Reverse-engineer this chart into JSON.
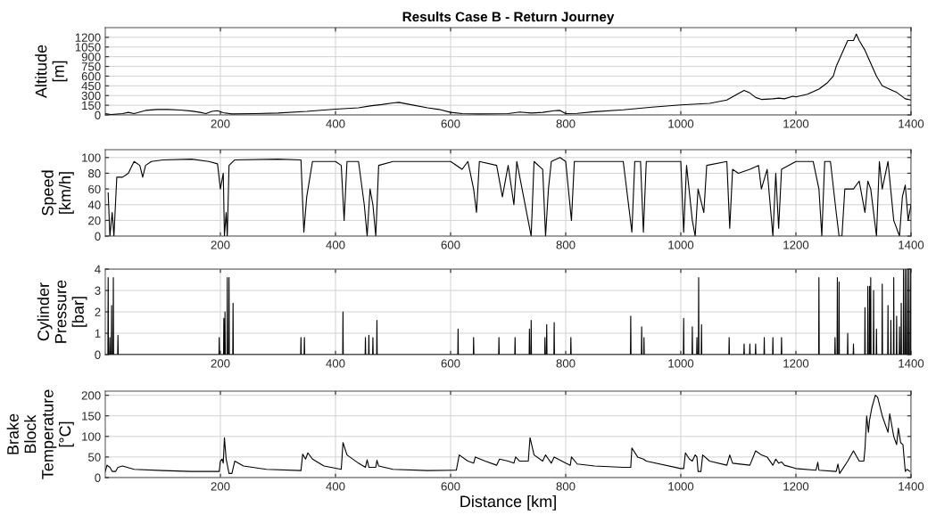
{
  "chart_data": [
    {
      "type": "line",
      "title": "Results Case B - Return Journey",
      "ylabel": "Altitude\n[m]",
      "xlim": [
        0,
        1400
      ],
      "xticks": [
        200,
        400,
        600,
        800,
        1000,
        1200,
        1400
      ],
      "ylim": [
        0,
        1350
      ],
      "yticks": [
        0,
        150,
        300,
        450,
        600,
        750,
        900,
        1050,
        1200
      ],
      "grid": true,
      "series": [
        {
          "color": "#000000",
          "x": [
            0,
            10,
            30,
            40,
            50,
            70,
            90,
            110,
            130,
            150,
            165,
            175,
            185,
            195,
            205,
            220,
            260,
            300,
            350,
            400,
            420,
            440,
            460,
            480,
            500,
            510,
            530,
            560,
            580,
            600,
            620,
            650,
            700,
            720,
            740,
            760,
            780,
            790,
            800,
            820,
            850,
            900,
            950,
            1000,
            1050,
            1080,
            1100,
            1110,
            1120,
            1130,
            1140,
            1160,
            1170,
            1180,
            1195,
            1200,
            1220,
            1240,
            1255,
            1265,
            1270,
            1280,
            1285,
            1290,
            1300,
            1305,
            1310,
            1320,
            1330,
            1340,
            1350,
            1370,
            1375,
            1390,
            1400
          ],
          "values": [
            20,
            5,
            20,
            40,
            20,
            70,
            85,
            85,
            75,
            60,
            40,
            20,
            55,
            65,
            35,
            15,
            20,
            30,
            55,
            90,
            100,
            110,
            140,
            160,
            185,
            195,
            160,
            110,
            85,
            40,
            20,
            15,
            20,
            45,
            30,
            40,
            65,
            70,
            20,
            25,
            50,
            80,
            120,
            155,
            180,
            230,
            330,
            380,
            340,
            270,
            240,
            250,
            260,
            250,
            290,
            280,
            320,
            400,
            500,
            600,
            750,
            950,
            1050,
            1150,
            1150,
            1250,
            1150,
            1000,
            800,
            600,
            450,
            370,
            350,
            250,
            230
          ]
        }
      ]
    },
    {
      "type": "line",
      "ylabel": "Speed\n[km/h]",
      "xlim": [
        0,
        1400
      ],
      "xticks": [
        200,
        400,
        600,
        800,
        1000,
        1200,
        1400
      ],
      "ylim": [
        0,
        110
      ],
      "yticks": [
        0,
        20,
        40,
        60,
        80,
        100
      ],
      "grid": true,
      "series": [
        {
          "color": "#000000",
          "x": [
            5,
            8,
            12,
            15,
            18,
            20,
            30,
            40,
            50,
            60,
            65,
            70,
            80,
            100,
            150,
            180,
            195,
            200,
            205,
            207,
            210,
            212,
            215,
            225,
            300,
            340,
            345,
            350,
            360,
            400,
            410,
            415,
            420,
            440,
            450,
            455,
            460,
            465,
            470,
            475,
            500,
            600,
            620,
            630,
            640,
            645,
            650,
            680,
            690,
            700,
            710,
            715,
            740,
            745,
            760,
            765,
            770,
            775,
            790,
            800,
            810,
            815,
            900,
            915,
            920,
            930,
            935,
            940,
            1000,
            1005,
            1010,
            1020,
            1025,
            1030,
            1040,
            1045,
            1080,
            1085,
            1090,
            1100,
            1120,
            1135,
            1140,
            1150,
            1160,
            1165,
            1170,
            1175,
            1200,
            1230,
            1240,
            1245,
            1250,
            1260,
            1270,
            1275,
            1280,
            1285,
            1300,
            1310,
            1320,
            1325,
            1330,
            1340,
            1345,
            1350,
            1360,
            1370,
            1380,
            1385,
            1390,
            1395,
            1400
          ],
          "values": [
            55,
            0,
            30,
            0,
            45,
            75,
            75,
            80,
            95,
            90,
            75,
            90,
            95,
            97,
            98,
            95,
            92,
            60,
            80,
            0,
            30,
            0,
            90,
            97,
            98,
            97,
            5,
            50,
            95,
            95,
            90,
            20,
            95,
            95,
            40,
            0,
            60,
            40,
            0,
            90,
            95,
            95,
            85,
            95,
            60,
            30,
            95,
            90,
            50,
            90,
            40,
            95,
            0,
            95,
            85,
            0,
            60,
            95,
            100,
            95,
            20,
            95,
            95,
            5,
            95,
            95,
            5,
            95,
            95,
            5,
            90,
            20,
            0,
            60,
            30,
            90,
            95,
            10,
            85,
            80,
            85,
            90,
            60,
            85,
            0,
            80,
            10,
            85,
            95,
            95,
            60,
            0,
            95,
            95,
            30,
            0,
            0,
            60,
            60,
            70,
            30,
            70,
            60,
            0,
            95,
            60,
            95,
            20,
            0,
            50,
            65,
            20,
            40
          ]
        }
      ]
    },
    {
      "type": "line",
      "ylabel": "Cylinder\nPressure\n[bar]",
      "xlim": [
        0,
        1400
      ],
      "xticks": [
        200,
        400,
        600,
        800,
        1000,
        1200,
        1400
      ],
      "ylim": [
        0,
        4
      ],
      "yticks": [
        0,
        1,
        2,
        3,
        4
      ],
      "grid": true,
      "series": [
        {
          "color": "#000000",
          "x": [
            4.5,
            5,
            5.5,
            7.5,
            8,
            8.5,
            10.5,
            11,
            11.5,
            13.5,
            14,
            14.5,
            21.5,
            22,
            22.5,
            197.5,
            198,
            198.5,
            205.5,
            206,
            206.5,
            207.5,
            208,
            208.5,
            211.5,
            212,
            212.5,
            214.5,
            215,
            215.5,
            221.5,
            222,
            222.5,
            339.5,
            340,
            340.5,
            345.5,
            346,
            346.5,
            412.5,
            413,
            413.5,
            451.5,
            452,
            452.5,
            457.5,
            458,
            458.5,
            464.5,
            465,
            465.5,
            471.5,
            472,
            472.5,
            612.5,
            613,
            613.5,
            639.5,
            640,
            640.5,
            683.5,
            684,
            684.5,
            711.5,
            712,
            712.5,
            736.5,
            737,
            737.5,
            739.5,
            740,
            740.5,
            763.5,
            764,
            764.5,
            766.5,
            767,
            767.5,
            779.5,
            780,
            780.5,
            808.5,
            809,
            809.5,
            912.5,
            913,
            913.5,
            931.5,
            932,
            932.5,
            935.5,
            936,
            936.5,
            1004.5,
            1005,
            1005.5,
            1019.5,
            1020,
            1020.5,
            1027.5,
            1028,
            1028.5,
            1030.5,
            1031,
            1031.5,
            1035.5,
            1036,
            1036.5,
            1083.5,
            1084,
            1084.5,
            1109.5,
            1110,
            1110.5,
            1119.5,
            1120,
            1120.5,
            1129.5,
            1130,
            1130.5,
            1144.5,
            1145,
            1145.5,
            1159.5,
            1160,
            1160.5,
            1174.5,
            1175,
            1175.5,
            1239.5,
            1240,
            1240.5,
            1267.5,
            1268,
            1268.5,
            1271.5,
            1272,
            1272.5,
            1274.5,
            1275,
            1275.5,
            1289.5,
            1290,
            1290.5,
            1299.5,
            1300,
            1300.5,
            1319.5,
            1320,
            1320.5,
            1324.5,
            1325,
            1325.5,
            1327.5,
            1328,
            1328.5,
            1329.5,
            1330,
            1330.5,
            1334.5,
            1335,
            1335.5,
            1339.5,
            1340,
            1340.5,
            1349.5,
            1350,
            1350.5,
            1359.5,
            1360,
            1360.5,
            1364.5,
            1365,
            1365.5,
            1369.5,
            1370,
            1370.5,
            1374.5,
            1375,
            1375.5,
            1379.5,
            1380,
            1380.5,
            1382.5,
            1383,
            1383.5,
            1386.5,
            1387,
            1387.5,
            1389.5,
            1390,
            1390.5,
            1392.5,
            1393,
            1393.5,
            1395.5,
            1396,
            1396.5,
            1398.5,
            1399,
            1399.5
          ],
          "values": [
            0,
            3.6,
            0,
            0,
            0.8,
            0,
            0,
            2.3,
            0,
            0,
            3.6,
            0,
            0,
            0.9,
            0,
            0,
            0.8,
            0,
            0,
            1.7,
            0,
            0,
            2.0,
            0,
            0,
            3.6,
            0,
            0,
            3.6,
            0,
            0,
            2.4,
            0,
            0,
            0.8,
            0,
            0,
            0.8,
            0,
            0,
            2.0,
            0,
            0,
            0.8,
            0,
            0,
            0.9,
            0,
            0,
            0.8,
            0,
            0,
            1.6,
            0,
            0,
            1.2,
            0,
            0,
            0.8,
            0,
            0,
            0.8,
            0,
            0,
            0.8,
            0,
            0,
            1.2,
            0,
            0,
            1.6,
            0,
            0,
            0.8,
            0,
            0,
            1.4,
            0,
            0,
            1.5,
            0,
            0,
            0.8,
            0,
            0,
            1.8,
            0,
            0,
            1.3,
            0,
            0,
            0.8,
            0,
            0,
            1.7,
            0,
            0,
            1.3,
            0,
            0,
            0.8,
            0,
            0,
            3.6,
            0,
            0,
            1.4,
            0,
            0,
            0.8,
            0,
            0,
            0.5,
            0,
            0,
            0.5,
            0,
            0,
            0.5,
            0,
            0,
            0.8,
            0,
            0,
            0.8,
            0,
            0,
            0.8,
            0,
            0,
            3.6,
            0,
            0,
            0.8,
            0,
            0,
            3.6,
            0,
            0,
            3.4,
            0,
            0,
            1.0,
            0,
            0,
            0.5,
            0,
            0,
            2.2,
            0,
            0,
            3.2,
            0,
            0,
            3.2,
            0,
            0,
            3.6,
            0,
            0,
            3.0,
            0,
            0,
            1.2,
            0,
            0,
            3.3,
            0,
            0,
            2.3,
            0,
            0,
            1.6,
            0,
            0,
            3.6,
            0,
            0,
            1.8,
            0,
            0,
            1.3,
            0,
            0,
            2.4,
            0,
            0,
            4,
            0,
            0,
            4,
            0,
            0,
            4,
            0,
            0,
            4,
            0,
            0,
            4,
            0
          ]
        }
      ]
    },
    {
      "type": "line",
      "ylabel": "Brake\nBlock\nTemperature\n[°C]",
      "xlabel": "Distance [km]",
      "xlim": [
        0,
        1400
      ],
      "xticks": [
        200,
        400,
        600,
        800,
        1000,
        1200,
        1400
      ],
      "ylim": [
        0,
        210
      ],
      "yticks": [
        0,
        50,
        100,
        150,
        200
      ],
      "grid": true,
      "series": [
        {
          "color": "#000000",
          "x": [
            0,
            3,
            8,
            12,
            18,
            22,
            30,
            50,
            100,
            150,
            198,
            200,
            203,
            205,
            207,
            210,
            215,
            220,
            225,
            240,
            280,
            340,
            343,
            348,
            352,
            360,
            380,
            410,
            413,
            420,
            440,
            452,
            455,
            458,
            470,
            472,
            475,
            500,
            560,
            610,
            615,
            630,
            640,
            643,
            660,
            680,
            685,
            700,
            710,
            713,
            720,
            735,
            738,
            745,
            760,
            765,
            770,
            775,
            780,
            800,
            808,
            810,
            820,
            850,
            900,
            913,
            915,
            925,
            935,
            940,
            1000,
            1005,
            1008,
            1015,
            1020,
            1025,
            1028,
            1030,
            1035,
            1038,
            1050,
            1080,
            1085,
            1090,
            1120,
            1130,
            1140,
            1150,
            1160,
            1165,
            1170,
            1175,
            1180,
            1200,
            1235,
            1238,
            1240,
            1270,
            1273,
            1276,
            1290,
            1300,
            1310,
            1318,
            1320,
            1323,
            1326,
            1328,
            1332,
            1338,
            1342,
            1350,
            1360,
            1363,
            1370,
            1375,
            1378,
            1382,
            1386,
            1390,
            1393,
            1398
          ],
          "values": [
            15,
            30,
            25,
            15,
            15,
            25,
            28,
            20,
            17,
            15,
            15,
            40,
            45,
            35,
            97,
            45,
            10,
            10,
            40,
            28,
            20,
            17,
            57,
            45,
            60,
            45,
            28,
            20,
            85,
            55,
            35,
            25,
            43,
            25,
            25,
            42,
            28,
            20,
            17,
            18,
            55,
            40,
            35,
            50,
            40,
            30,
            45,
            40,
            35,
            50,
            40,
            40,
            97,
            55,
            40,
            55,
            45,
            35,
            50,
            35,
            30,
            50,
            33,
            28,
            25,
            25,
            72,
            50,
            45,
            40,
            22,
            22,
            60,
            45,
            40,
            55,
            50,
            15,
            15,
            55,
            40,
            30,
            55,
            35,
            30,
            65,
            55,
            50,
            30,
            45,
            35,
            38,
            30,
            22,
            18,
            37,
            18,
            15,
            33,
            10,
            40,
            65,
            40,
            40,
            70,
            150,
            110,
            140,
            170,
            200,
            195,
            150,
            110,
            155,
            100,
            80,
            120,
            85,
            80,
            15,
            20,
            15
          ]
        }
      ]
    }
  ]
}
